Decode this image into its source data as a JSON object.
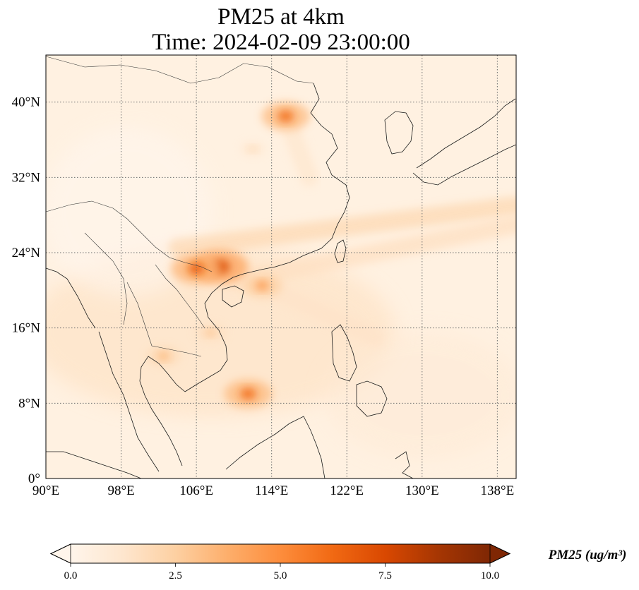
{
  "title": {
    "line1": "PM25 at 4km",
    "line2": "Time: 2024-02-09 23:00:00"
  },
  "axes": {
    "lon_ticks": [
      "90°E",
      "98°E",
      "106°E",
      "114°E",
      "122°E",
      "130°E",
      "138°E"
    ],
    "lat_ticks": [
      "0°",
      "8°N",
      "16°N",
      "24°N",
      "32°N",
      "40°N"
    ]
  },
  "colorbar": {
    "label": "PM25 (ug/m³)",
    "ticks": [
      "0.0",
      "2.5",
      "5.0",
      "7.5",
      "10.0"
    ],
    "cmap": [
      "#fff5eb",
      "#fee6ce",
      "#fdd0a2",
      "#fdae6b",
      "#fd8d3c",
      "#f16913",
      "#d94801",
      "#a63603",
      "#7f2704"
    ],
    "extend": "both"
  },
  "map_data": {
    "projection": "PlateCarree",
    "lon_range": [
      90,
      140
    ],
    "lat_range": [
      0,
      45
    ],
    "gridlines": true,
    "gridline_lons": [
      90,
      98,
      106,
      114,
      122,
      130,
      138
    ],
    "gridline_lats": [
      0,
      8,
      16,
      24,
      32,
      40
    ],
    "field": "PM25",
    "value_range": [
      0,
      10
    ],
    "hotspots": [
      {
        "lon": 108.5,
        "lat": 22.5,
        "value": 7.5
      },
      {
        "lon": 106.0,
        "lat": 22.3,
        "value": 6.5
      },
      {
        "lon": 115.5,
        "lat": 38.5,
        "value": 6.0
      },
      {
        "lon": 111.5,
        "lat": 9.0,
        "value": 6.0
      },
      {
        "lon": 113.0,
        "lat": 20.5,
        "value": 4.5
      },
      {
        "lon": 102.5,
        "lat": 13.0,
        "value": 3.5
      },
      {
        "lon": 107.5,
        "lat": 15.5,
        "value": 3.0
      },
      {
        "lon": 112.0,
        "lat": 35.0,
        "value": 2.0
      }
    ],
    "plumes": [
      {
        "from": [
          104.0,
          24.5
        ],
        "to": [
          140.0,
          29.0
        ],
        "value": 2.0
      },
      {
        "from": [
          110.0,
          21.0
        ],
        "to": [
          140.0,
          27.0
        ],
        "value": 1.6
      },
      {
        "from": [
          115.5,
          38.5
        ],
        "to": [
          118.0,
          32.0
        ],
        "value": 1.2
      },
      {
        "from": [
          112.0,
          21.0
        ],
        "to": [
          125.0,
          15.0
        ],
        "value": 1.4
      }
    ]
  }
}
